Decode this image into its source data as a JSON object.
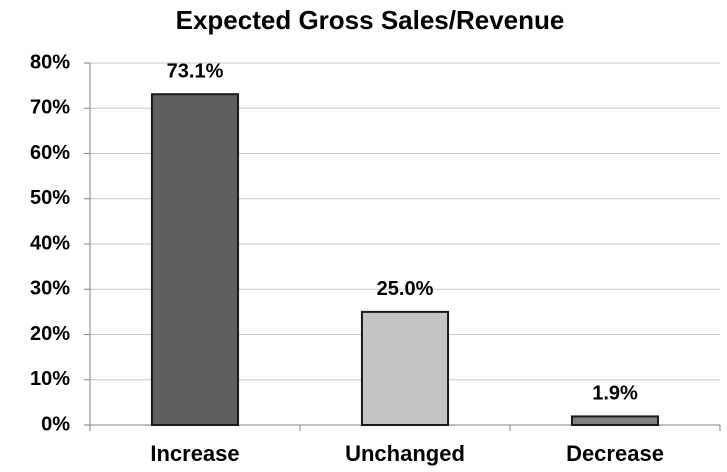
{
  "chart_data": {
    "type": "bar",
    "title": "Expected Gross Sales/Revenue",
    "categories": [
      "Increase",
      "Unchanged",
      "Decrease"
    ],
    "values": [
      73.1,
      25.0,
      1.9
    ],
    "value_labels": [
      "73.1%",
      "25.0%",
      "1.9%"
    ],
    "colors": [
      "#5f5f5f",
      "#c4c4c4",
      "#7f7f7f"
    ],
    "ylim": [
      0,
      80
    ],
    "yticks": [
      {
        "value": 0,
        "label": "0%"
      },
      {
        "value": 10,
        "label": "10%"
      },
      {
        "value": 20,
        "label": "20%"
      },
      {
        "value": 30,
        "label": "30%"
      },
      {
        "value": 40,
        "label": "40%"
      },
      {
        "value": 50,
        "label": "50%"
      },
      {
        "value": 60,
        "label": "60%"
      },
      {
        "value": 70,
        "label": "70%"
      },
      {
        "value": 80,
        "label": "80%"
      }
    ],
    "grid": true
  }
}
